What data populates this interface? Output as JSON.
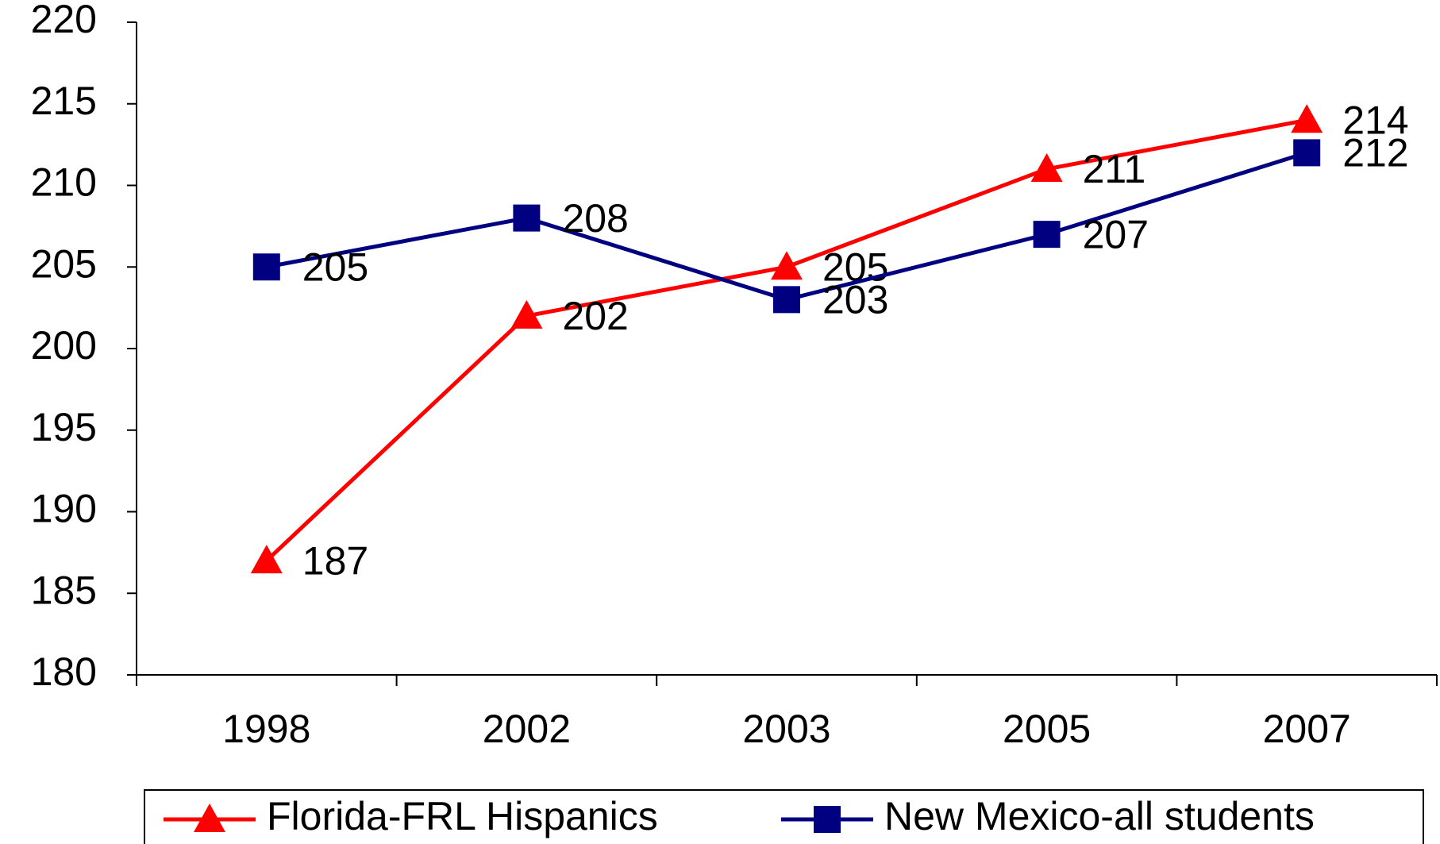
{
  "chart_data": {
    "type": "line",
    "categories": [
      "1998",
      "2002",
      "2003",
      "2005",
      "2007"
    ],
    "series": [
      {
        "name": "Florida-FRL Hispanics",
        "color": "#ff0000",
        "marker": "triangle",
        "values": [
          187,
          202,
          205,
          211,
          214
        ]
      },
      {
        "name": "New Mexico-all students",
        "color": "#000080",
        "marker": "square",
        "values": [
          205,
          208,
          203,
          207,
          212
        ]
      }
    ],
    "ylim": [
      180,
      220
    ],
    "yticks": [
      180,
      185,
      190,
      195,
      200,
      205,
      210,
      215,
      220
    ],
    "grid": false,
    "legend": "bottom",
    "data_labels": true
  }
}
